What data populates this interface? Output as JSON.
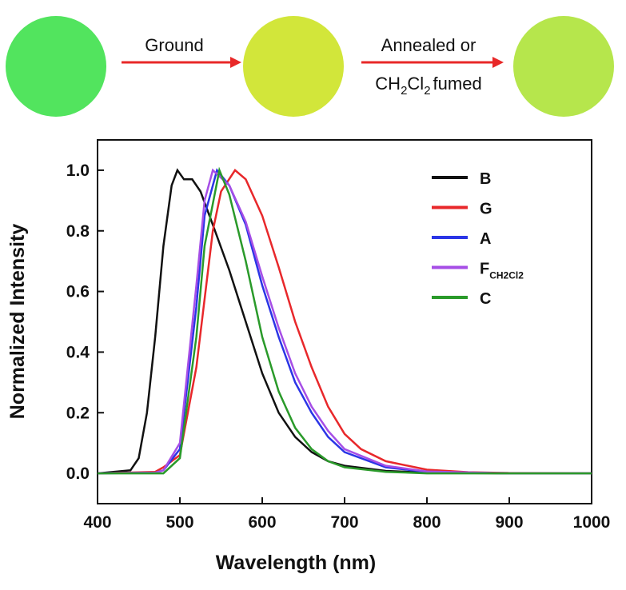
{
  "top": {
    "steps": [
      "Ground",
      "Annealed or"
    ],
    "step2_line2": [
      "CH",
      "2",
      "Cl",
      "2",
      "fumed"
    ]
  },
  "chart_data": {
    "type": "line",
    "xlabel": "Wavelength (nm)",
    "ylabel": "Normalized Intensity",
    "xlim": [
      400,
      1000
    ],
    "xticks": [
      400,
      500,
      600,
      700,
      800,
      900,
      1000
    ],
    "ylim": [
      -0.1,
      1.1
    ],
    "yticks": [
      {
        "value": 0,
        "label": "0.0"
      },
      {
        "value": 0.2,
        "label": "0.2"
      },
      {
        "value": 0.4,
        "label": "0.4"
      },
      {
        "value": 0.6,
        "label": "0.6"
      },
      {
        "value": 0.8,
        "label": "0.8"
      },
      {
        "value": 1,
        "label": "1.0"
      }
    ],
    "legend": "upper right",
    "series": [
      {
        "name": "B",
        "color": "#111111",
        "x": [
          400,
          440,
          450,
          460,
          470,
          480,
          490,
          497,
          505,
          515,
          525,
          540,
          560,
          580,
          600,
          620,
          640,
          660,
          680,
          700,
          750,
          800,
          900,
          1000
        ],
        "values": [
          0,
          0.01,
          0.05,
          0.2,
          0.45,
          0.75,
          0.95,
          1.0,
          0.97,
          0.97,
          0.93,
          0.82,
          0.67,
          0.5,
          0.33,
          0.2,
          0.12,
          0.07,
          0.04,
          0.025,
          0.008,
          0.002,
          0,
          0
        ]
      },
      {
        "name": "G",
        "color": "#e8282b",
        "x": [
          400,
          470,
          480,
          500,
          520,
          540,
          550,
          567,
          580,
          600,
          620,
          640,
          660,
          680,
          700,
          720,
          750,
          800,
          850,
          900,
          1000
        ],
        "values": [
          0,
          0.005,
          0.02,
          0.06,
          0.35,
          0.8,
          0.93,
          1.0,
          0.97,
          0.85,
          0.68,
          0.5,
          0.35,
          0.22,
          0.13,
          0.08,
          0.04,
          0.012,
          0.004,
          0.001,
          0
        ]
      },
      {
        "name": "A",
        "color": "#2b35e6",
        "x": [
          400,
          470,
          480,
          500,
          520,
          530,
          545,
          560,
          580,
          600,
          620,
          640,
          660,
          680,
          700,
          750,
          800,
          900,
          1000
        ],
        "values": [
          0,
          0.002,
          0.01,
          0.08,
          0.55,
          0.85,
          1.0,
          0.95,
          0.82,
          0.62,
          0.45,
          0.3,
          0.2,
          0.12,
          0.07,
          0.02,
          0.005,
          0,
          0
        ]
      },
      {
        "name": "F",
        "subscript": "CH2Cl2",
        "color": "#a64ee6",
        "x": [
          400,
          470,
          480,
          500,
          520,
          530,
          540,
          560,
          580,
          600,
          620,
          640,
          660,
          680,
          700,
          750,
          800,
          900,
          1000
        ],
        "values": [
          0,
          0.002,
          0.01,
          0.1,
          0.62,
          0.9,
          1.0,
          0.95,
          0.83,
          0.65,
          0.48,
          0.33,
          0.22,
          0.14,
          0.08,
          0.025,
          0.006,
          0,
          0
        ]
      },
      {
        "name": "C",
        "color": "#2a9a2a",
        "x": [
          400,
          480,
          500,
          520,
          530,
          548,
          560,
          580,
          600,
          620,
          640,
          660,
          680,
          700,
          750,
          800,
          1000
        ],
        "values": [
          0,
          0,
          0.05,
          0.45,
          0.75,
          1.0,
          0.92,
          0.7,
          0.45,
          0.27,
          0.15,
          0.08,
          0.04,
          0.02,
          0.005,
          0,
          0
        ]
      }
    ]
  }
}
